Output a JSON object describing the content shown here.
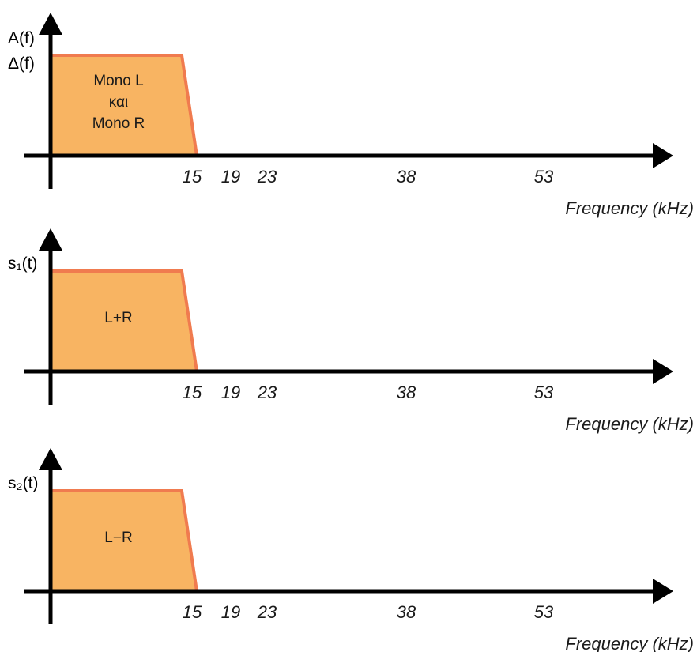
{
  "colors": {
    "band_fill": "#F8B462",
    "band_edge": "#F07B4F",
    "axis": "#000000"
  },
  "panels": [
    {
      "y_label_lines": [
        "A(f)",
        "Δ(f)"
      ],
      "band_label_lines": [
        "Mono L",
        "και",
        "Mono R"
      ],
      "ticks": [
        "15",
        "19",
        "23",
        "38",
        "53"
      ],
      "x_label": "Frequency (kHz)"
    },
    {
      "y_label_lines": [
        "s₁(t)"
      ],
      "band_label_lines": [
        "L+R"
      ],
      "ticks": [
        "15",
        "19",
        "23",
        "38",
        "53"
      ],
      "x_label": "Frequency (kHz)"
    },
    {
      "y_label_lines": [
        "s₂(t)"
      ],
      "band_label_lines": [
        "L−R"
      ],
      "ticks": [
        "15",
        "19",
        "23",
        "38",
        "53"
      ],
      "x_label": "Frequency (kHz)"
    }
  ]
}
